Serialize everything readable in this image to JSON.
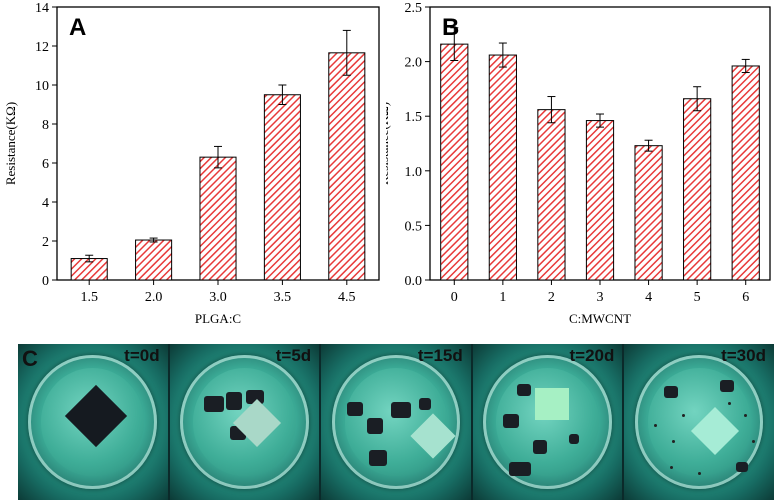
{
  "chart_data": [
    {
      "panel": "A",
      "type": "bar",
      "categories": [
        "1.5",
        "2.0",
        "3.0",
        "3.5",
        "4.5"
      ],
      "values": [
        1.1,
        2.05,
        6.3,
        9.5,
        11.65
      ],
      "errors": [
        0.17,
        0.1,
        0.55,
        0.5,
        1.15
      ],
      "xlabel": "PLGA:C",
      "ylabel": "Resistance(KΩ)",
      "ylim": [
        0,
        14
      ],
      "yticks": [
        "0",
        "2",
        "4",
        "6",
        "8",
        "10",
        "12",
        "14"
      ],
      "bar_color": "#e83a3a",
      "grid": false
    },
    {
      "panel": "B",
      "type": "bar",
      "categories": [
        "0",
        "1",
        "2",
        "3",
        "4",
        "5",
        "6"
      ],
      "values": [
        2.16,
        2.06,
        1.56,
        1.46,
        1.23,
        1.66,
        1.96
      ],
      "errors": [
        0.15,
        0.11,
        0.12,
        0.06,
        0.05,
        0.11,
        0.06
      ],
      "xlabel": "C:MWCNT",
      "ylabel": "Resistance(KΩ)",
      "ylim": [
        0,
        2.5
      ],
      "yticks": [
        "0.0",
        "0.5",
        "1.0",
        "1.5",
        "2.0",
        "2.5"
      ],
      "bar_color": "#e83a3a",
      "grid": false
    }
  ],
  "photo_panel": {
    "label": "C",
    "times": [
      "t=0d",
      "t=5d",
      "t=15d",
      "t=20d",
      "t=30d"
    ]
  }
}
